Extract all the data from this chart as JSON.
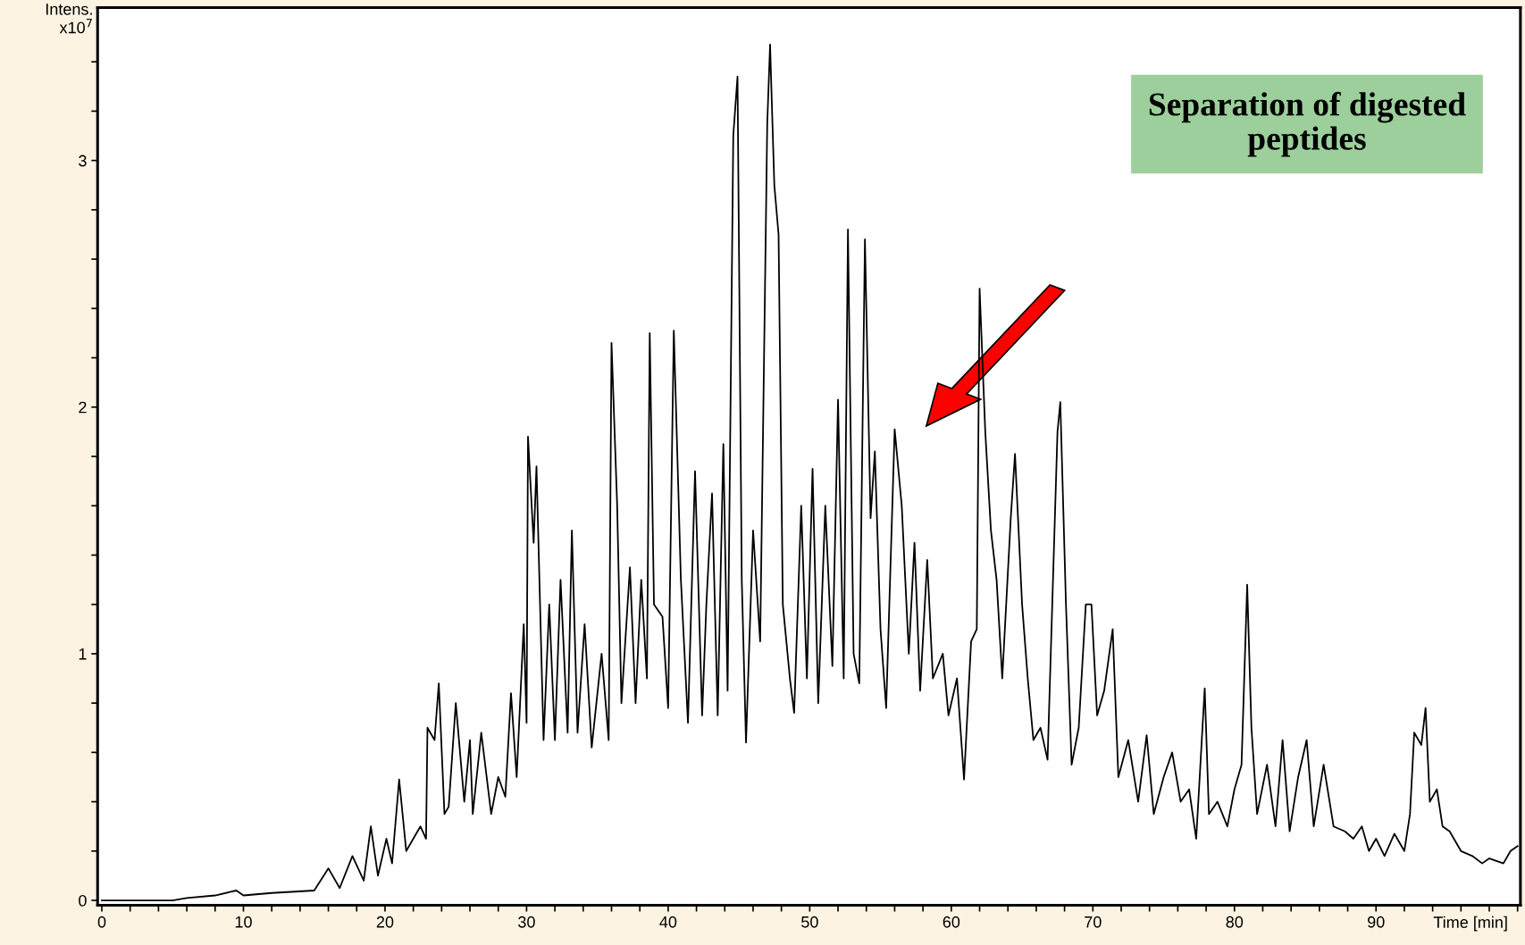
{
  "chart_data": {
    "type": "line",
    "xlabel": "Time [min]",
    "ylabel": "Intens.\nx10$^{7}$",
    "annotations": [
      "Separation of digested peptides"
    ],
    "xlim": [
      -0.3,
      100.2
    ],
    "ylim": [
      -0.02,
      3.62
    ],
    "xticks": [
      0,
      {
        "value": 2,
        "label": null
      },
      {
        "value": 4,
        "label": null
      },
      {
        "value": 6,
        "label": null
      },
      {
        "value": 8,
        "label": null
      },
      10,
      {
        "value": 12,
        "label": null
      },
      {
        "value": 14,
        "label": null
      },
      {
        "value": 16,
        "label": null
      },
      {
        "value": 18,
        "label": null
      },
      20,
      {
        "value": 22,
        "label": null
      },
      {
        "value": 24,
        "label": null
      },
      {
        "value": 26,
        "label": null
      },
      {
        "value": 28,
        "label": null
      },
      30,
      {
        "value": 32,
        "label": null
      },
      {
        "value": 34,
        "label": null
      },
      {
        "value": 36,
        "label": null
      },
      {
        "value": 38,
        "label": null
      },
      40,
      {
        "value": 42,
        "label": null
      },
      {
        "value": 44,
        "label": null
      },
      {
        "value": 46,
        "label": null
      },
      {
        "value": 48,
        "label": null
      },
      50,
      {
        "value": 52,
        "label": null
      },
      {
        "value": 54,
        "label": null
      },
      {
        "value": 56,
        "label": null
      },
      {
        "value": 58,
        "label": null
      },
      60,
      {
        "value": 62,
        "label": null
      },
      {
        "value": 64,
        "label": null
      },
      {
        "value": 66,
        "label": null
      },
      {
        "value": 68,
        "label": null
      },
      70,
      {
        "value": 72,
        "label": null
      },
      {
        "value": 74,
        "label": null
      },
      {
        "value": 76,
        "label": null
      },
      {
        "value": 78,
        "label": null
      },
      80,
      {
        "value": 82,
        "label": null
      },
      {
        "value": 84,
        "label": null
      },
      {
        "value": 86,
        "label": null
      },
      {
        "value": 88,
        "label": null
      },
      90,
      {
        "value": 92,
        "label": null
      },
      {
        "value": 94,
        "label": null
      },
      {
        "value": 96,
        "label": null
      },
      {
        "value": 98,
        "label": null
      },
      {
        "value": 100,
        "label": null
      }
    ],
    "yticks": [
      0,
      {
        "value": 0.2,
        "label": null
      },
      {
        "value": 0.4,
        "label": null
      },
      {
        "value": 0.6,
        "label": null
      },
      {
        "value": 0.8,
        "label": null
      },
      1,
      {
        "value": 1.2,
        "label": null
      },
      {
        "value": 1.4,
        "label": null
      },
      {
        "value": 1.6,
        "label": null
      },
      {
        "value": 1.8,
        "label": null
      },
      2,
      {
        "value": 2.2,
        "label": null
      },
      {
        "value": 2.4,
        "label": null
      },
      {
        "value": 2.6,
        "label": null
      },
      {
        "value": 2.8,
        "label": null
      },
      3,
      {
        "value": 3.2,
        "label": null
      },
      {
        "value": 3.4,
        "label": null
      }
    ],
    "grid": false,
    "legend": false,
    "marker": "none",
    "line_style": "solid",
    "series": [
      {
        "color": "#000000",
        "x": [
          0,
          5,
          6,
          8,
          9.5,
          10,
          12,
          15,
          16,
          16.8,
          17.7,
          18.5,
          19,
          19.5,
          20.1,
          20.5,
          21,
          21.5,
          22.5,
          22.9,
          23,
          23.5,
          23.8,
          24.2,
          24.5,
          25,
          25.6,
          26,
          26.2,
          26.8,
          27.5,
          28,
          28.5,
          28.9,
          29.3,
          29.8,
          30,
          30.1,
          30.5,
          30.7,
          31.2,
          31.6,
          32,
          32.4,
          32.9,
          33.2,
          33.6,
          34.1,
          34.6,
          35.3,
          35.8,
          36,
          36.4,
          36.7,
          37.3,
          37.7,
          38.1,
          38.5,
          38.7,
          39,
          39.6,
          40,
          40.4,
          40.9,
          41.4,
          41.9,
          42.4,
          42.7,
          43.1,
          43.5,
          43.9,
          44.2,
          44.6,
          44.9,
          45.2,
          45.5,
          46,
          46.5,
          47,
          47.2,
          47.5,
          47.8,
          48.1,
          48.6,
          48.9,
          49.4,
          49.8,
          50.2,
          50.6,
          51.1,
          51.6,
          52,
          52.4,
          52.7,
          53.1,
          53.5,
          53.9,
          54.3,
          54.6,
          55,
          55.4,
          56,
          56.5,
          57,
          57.4,
          57.8,
          58.3,
          58.7,
          59.4,
          59.8,
          60.4,
          60.9,
          61.4,
          61.8,
          62,
          62.4,
          62.8,
          63.2,
          63.6,
          64.2,
          64.5,
          65,
          65.4,
          65.8,
          66.3,
          66.8,
          67.5,
          67.7,
          68.1,
          68.5,
          69,
          69.5,
          69.9,
          70.3,
          70.8,
          71.4,
          71.8,
          72.5,
          73.2,
          73.8,
          74.3,
          75,
          75.6,
          76.2,
          76.8,
          77.3,
          77.9,
          78.2,
          78.8,
          79.5,
          80,
          80.5,
          80.9,
          81.2,
          81.6,
          82.3,
          82.9,
          83.4,
          83.9,
          84.5,
          85.1,
          85.6,
          86.3,
          87,
          87.8,
          88.4,
          89,
          89.5,
          90,
          90.6,
          91.3,
          92,
          92.4,
          92.7,
          93.2,
          93.5,
          93.8,
          94.3,
          94.7,
          95.2,
          96,
          96.8,
          97.5,
          98,
          99,
          99.5,
          100
        ],
        "values": [
          0,
          0,
          0.01,
          0.02,
          0.04,
          0.02,
          0.03,
          0.04,
          0.13,
          0.05,
          0.18,
          0.08,
          0.3,
          0.1,
          0.25,
          0.15,
          0.49,
          0.2,
          0.3,
          0.25,
          0.7,
          0.65,
          0.88,
          0.35,
          0.38,
          0.8,
          0.4,
          0.65,
          0.35,
          0.68,
          0.35,
          0.5,
          0.42,
          0.84,
          0.5,
          1.12,
          0.72,
          1.88,
          1.45,
          1.76,
          0.65,
          1.2,
          0.65,
          1.3,
          0.68,
          1.5,
          0.68,
          1.12,
          0.62,
          1.0,
          0.65,
          2.26,
          1.6,
          0.8,
          1.35,
          0.8,
          1.3,
          0.9,
          2.3,
          1.2,
          1.15,
          0.78,
          2.31,
          1.3,
          0.72,
          1.74,
          0.75,
          1.2,
          1.65,
          0.75,
          1.85,
          0.85,
          3.1,
          3.34,
          1.3,
          0.64,
          1.5,
          1.05,
          3.15,
          3.47,
          2.9,
          2.7,
          1.2,
          0.9,
          0.76,
          1.6,
          0.9,
          1.75,
          0.8,
          1.6,
          0.95,
          2.03,
          0.9,
          2.72,
          1.0,
          0.88,
          2.68,
          1.55,
          1.82,
          1.1,
          0.78,
          1.91,
          1.6,
          1.0,
          1.45,
          0.85,
          1.38,
          0.9,
          1.0,
          0.75,
          0.9,
          0.49,
          1.05,
          1.1,
          2.48,
          1.9,
          1.5,
          1.3,
          0.9,
          1.55,
          1.81,
          1.2,
          0.9,
          0.65,
          0.7,
          0.57,
          1.9,
          2.02,
          1.2,
          0.55,
          0.7,
          1.2,
          1.2,
          0.75,
          0.85,
          1.1,
          0.5,
          0.65,
          0.4,
          0.67,
          0.35,
          0.5,
          0.6,
          0.4,
          0.45,
          0.25,
          0.86,
          0.35,
          0.4,
          0.3,
          0.45,
          0.55,
          1.28,
          0.7,
          0.35,
          0.55,
          0.3,
          0.65,
          0.28,
          0.5,
          0.65,
          0.3,
          0.55,
          0.3,
          0.28,
          0.25,
          0.3,
          0.2,
          0.25,
          0.18,
          0.27,
          0.2,
          0.35,
          0.68,
          0.63,
          0.78,
          0.4,
          0.45,
          0.3,
          0.28,
          0.2,
          0.18,
          0.15,
          0.17,
          0.15,
          0.2,
          0.22
        ]
      }
    ]
  }
}
